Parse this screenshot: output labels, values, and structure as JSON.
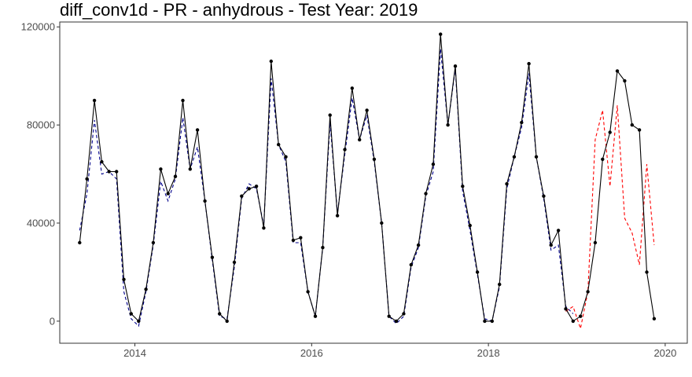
{
  "chart_data": {
    "type": "line",
    "title": "diff_conv1d - PR - anhydrous - Test Year: 2019",
    "xlabel": "",
    "ylabel": "",
    "x_ticks": [
      "2014",
      "2016",
      "2018",
      "2020"
    ],
    "y_ticks": [
      "0",
      "40000",
      "80000",
      "120000"
    ],
    "xlim": [
      2013.15,
      2020.25
    ],
    "ylim": [
      -9000,
      122000
    ],
    "grid": false,
    "legend": "none",
    "colors": {
      "actual": "#000000",
      "fitted": "#00008B",
      "forecast": "#FF0000"
    },
    "series": [
      {
        "style": "solid-with-points",
        "color": "#000000",
        "points": [
          [
            2013.375,
            32000
          ],
          [
            2013.458,
            58000
          ],
          [
            2013.542,
            90000
          ],
          [
            2013.625,
            65000
          ],
          [
            2013.708,
            61000
          ],
          [
            2013.792,
            61000
          ],
          [
            2013.875,
            17000
          ],
          [
            2013.958,
            3000
          ],
          [
            2014.042,
            0
          ],
          [
            2014.125,
            13000
          ],
          [
            2014.208,
            32000
          ],
          [
            2014.292,
            62000
          ],
          [
            2014.375,
            52000
          ],
          [
            2014.458,
            59000
          ],
          [
            2014.542,
            90000
          ],
          [
            2014.625,
            62000
          ],
          [
            2014.708,
            78000
          ],
          [
            2014.792,
            49000
          ],
          [
            2014.875,
            26000
          ],
          [
            2014.958,
            3000
          ],
          [
            2015.042,
            0
          ],
          [
            2015.125,
            24000
          ],
          [
            2015.208,
            51000
          ],
          [
            2015.292,
            54000
          ],
          [
            2015.375,
            55000
          ],
          [
            2015.458,
            38000
          ],
          [
            2015.542,
            106000
          ],
          [
            2015.625,
            72000
          ],
          [
            2015.708,
            67000
          ],
          [
            2015.792,
            33000
          ],
          [
            2015.875,
            34000
          ],
          [
            2015.958,
            12000
          ],
          [
            2016.042,
            2000
          ],
          [
            2016.125,
            30000
          ],
          [
            2016.208,
            84000
          ],
          [
            2016.292,
            43000
          ],
          [
            2016.375,
            70000
          ],
          [
            2016.458,
            95000
          ],
          [
            2016.542,
            74000
          ],
          [
            2016.625,
            86000
          ],
          [
            2016.708,
            66000
          ],
          [
            2016.792,
            40000
          ],
          [
            2016.875,
            2000
          ],
          [
            2016.958,
            0
          ],
          [
            2017.042,
            3000
          ],
          [
            2017.125,
            23000
          ],
          [
            2017.208,
            31000
          ],
          [
            2017.292,
            52000
          ],
          [
            2017.375,
            64000
          ],
          [
            2017.458,
            117000
          ],
          [
            2017.542,
            80000
          ],
          [
            2017.625,
            104000
          ],
          [
            2017.708,
            55000
          ],
          [
            2017.792,
            39000
          ],
          [
            2017.875,
            20000
          ],
          [
            2017.958,
            0
          ],
          [
            2018.042,
            0
          ],
          [
            2018.125,
            15000
          ],
          [
            2018.208,
            56000
          ],
          [
            2018.292,
            67000
          ],
          [
            2018.375,
            81000
          ],
          [
            2018.458,
            105000
          ],
          [
            2018.542,
            67000
          ],
          [
            2018.625,
            51000
          ],
          [
            2018.708,
            31000
          ],
          [
            2018.792,
            37000
          ],
          [
            2018.875,
            5000
          ],
          [
            2018.958,
            0
          ],
          [
            2019.042,
            2000
          ],
          [
            2019.125,
            12000
          ],
          [
            2019.208,
            32000
          ],
          [
            2019.292,
            66000
          ],
          [
            2019.375,
            77000
          ],
          [
            2019.458,
            102000
          ],
          [
            2019.542,
            98000
          ],
          [
            2019.625,
            80000
          ],
          [
            2019.708,
            78000
          ],
          [
            2019.792,
            20000
          ],
          [
            2019.875,
            1000
          ]
        ]
      },
      {
        "style": "dashed",
        "color": "#00008B",
        "points": [
          [
            2013.375,
            37000
          ],
          [
            2013.458,
            52000
          ],
          [
            2013.542,
            82000
          ],
          [
            2013.625,
            60000
          ],
          [
            2013.708,
            61000
          ],
          [
            2013.792,
            58000
          ],
          [
            2013.875,
            12000
          ],
          [
            2013.958,
            1000
          ],
          [
            2014.042,
            -2000
          ],
          [
            2014.125,
            12000
          ],
          [
            2014.208,
            31000
          ],
          [
            2014.292,
            57000
          ],
          [
            2014.375,
            49000
          ],
          [
            2014.458,
            58000
          ],
          [
            2014.542,
            83000
          ],
          [
            2014.625,
            62000
          ],
          [
            2014.708,
            71000
          ],
          [
            2014.792,
            49000
          ],
          [
            2014.875,
            25000
          ],
          [
            2014.958,
            2000
          ],
          [
            2015.042,
            1000
          ],
          [
            2015.125,
            22000
          ],
          [
            2015.208,
            50000
          ],
          [
            2015.292,
            56000
          ],
          [
            2015.375,
            54000
          ],
          [
            2015.458,
            39000
          ],
          [
            2015.542,
            99000
          ],
          [
            2015.625,
            72000
          ],
          [
            2015.708,
            65000
          ],
          [
            2015.792,
            32000
          ],
          [
            2015.875,
            32000
          ],
          [
            2015.958,
            12000
          ],
          [
            2016.042,
            2000
          ],
          [
            2016.125,
            30000
          ],
          [
            2016.208,
            81000
          ],
          [
            2016.292,
            44000
          ],
          [
            2016.375,
            68000
          ],
          [
            2016.458,
            91000
          ],
          [
            2016.542,
            74000
          ],
          [
            2016.625,
            84000
          ],
          [
            2016.708,
            65000
          ],
          [
            2016.792,
            40000
          ],
          [
            2016.875,
            2000
          ],
          [
            2016.958,
            -1000
          ],
          [
            2017.042,
            2000
          ],
          [
            2017.125,
            22000
          ],
          [
            2017.208,
            30000
          ],
          [
            2017.292,
            51000
          ],
          [
            2017.375,
            61000
          ],
          [
            2017.458,
            111000
          ],
          [
            2017.542,
            80000
          ],
          [
            2017.625,
            103000
          ],
          [
            2017.708,
            53000
          ],
          [
            2017.792,
            37000
          ],
          [
            2017.875,
            19000
          ],
          [
            2017.958,
            1000
          ],
          [
            2018.042,
            0
          ],
          [
            2018.125,
            14000
          ],
          [
            2018.208,
            54000
          ],
          [
            2018.292,
            67000
          ],
          [
            2018.375,
            79000
          ],
          [
            2018.458,
            101000
          ],
          [
            2018.542,
            67000
          ],
          [
            2018.625,
            50000
          ],
          [
            2018.708,
            29000
          ],
          [
            2018.792,
            31000
          ],
          [
            2018.875,
            6000
          ],
          [
            2018.958,
            3000
          ]
        ]
      },
      {
        "style": "dashed",
        "color": "#FF0000",
        "points": [
          [
            2018.875,
            4000
          ],
          [
            2018.958,
            6000
          ],
          [
            2019.042,
            -3000
          ],
          [
            2019.125,
            12000
          ],
          [
            2019.208,
            74000
          ],
          [
            2019.292,
            86000
          ],
          [
            2019.375,
            55000
          ],
          [
            2019.458,
            88000
          ],
          [
            2019.542,
            42000
          ],
          [
            2019.625,
            36000
          ],
          [
            2019.708,
            23000
          ],
          [
            2019.792,
            64000
          ],
          [
            2019.875,
            31000
          ]
        ]
      }
    ]
  }
}
